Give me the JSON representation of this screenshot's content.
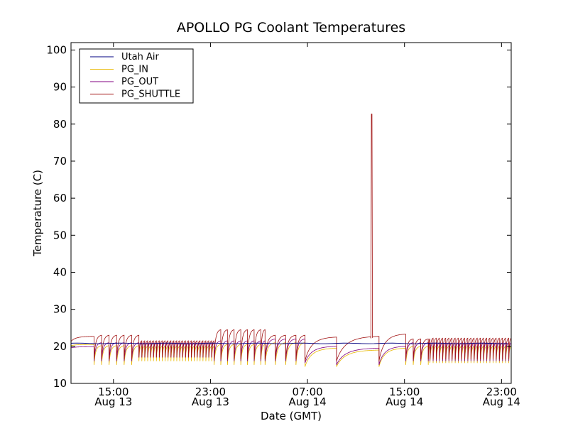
{
  "chart_data": {
    "type": "line",
    "title": "APOLLO PG Coolant Temperatures",
    "xlabel": "Date (GMT)",
    "ylabel": "Temperature (C)",
    "xlim_hours": [
      11.5,
      47.8
    ],
    "ylim": [
      10,
      102
    ],
    "yticks": [
      10,
      20,
      30,
      40,
      50,
      60,
      70,
      80,
      90,
      100
    ],
    "xticks": [
      {
        "h": 15,
        "time": "15:00",
        "date": "Aug 13"
      },
      {
        "h": 23,
        "time": "23:00",
        "date": "Aug 13"
      },
      {
        "h": 31,
        "time": "07:00",
        "date": "Aug 14"
      },
      {
        "h": 39,
        "time": "15:00",
        "date": "Aug 14"
      },
      {
        "h": 47,
        "time": "23:00",
        "date": "Aug 14"
      }
    ],
    "legend": {
      "position": "top-left"
    },
    "series": [
      {
        "name": "Utah Air",
        "color": "#000080"
      },
      {
        "name": "PG_IN",
        "color": "#e8b800"
      },
      {
        "name": "PG_OUT",
        "color": "#800080"
      },
      {
        "name": "PG_SHUTTLE",
        "color": "#a01010"
      }
    ],
    "utah_air_level": 20.8,
    "spike": {
      "h": 36.3,
      "peak": 82.7,
      "base": 22.3
    },
    "segments": [
      {
        "start": 11.5,
        "end": 13.4,
        "period": 1.9,
        "out_min": 19.6,
        "out_max": 19.9,
        "in_min": 20.2,
        "in_max": 20.5,
        "sh_min": 21.3,
        "sh_max": 22.7
      },
      {
        "start": 13.4,
        "end": 17.1,
        "period": 0.62,
        "out_min": 16.0,
        "out_max": 21.0,
        "in_min": 15.0,
        "in_max": 20.2,
        "sh_min": 16.5,
        "sh_max": 23.0
      },
      {
        "start": 17.1,
        "end": 23.3,
        "period": 0.24,
        "out_min": 17.0,
        "out_max": 21.0,
        "in_min": 16.0,
        "in_max": 20.0,
        "sh_min": 17.0,
        "sh_max": 21.5
      },
      {
        "start": 23.3,
        "end": 27.5,
        "period": 0.55,
        "out_min": 16.0,
        "out_max": 21.5,
        "in_min": 15.0,
        "in_max": 20.5,
        "sh_min": 16.5,
        "sh_max": 24.5
      },
      {
        "start": 27.5,
        "end": 30.8,
        "period": 0.85,
        "out_min": 16.0,
        "out_max": 22.0,
        "in_min": 15.0,
        "in_max": 21.0,
        "sh_min": 16.5,
        "sh_max": 23.0
      },
      {
        "start": 30.8,
        "end": 33.4,
        "period": 2.6,
        "out_min": 15.5,
        "out_max": 20.0,
        "in_min": 14.5,
        "in_max": 19.5,
        "sh_min": 16.0,
        "sh_max": 22.5
      },
      {
        "start": 33.4,
        "end": 36.9,
        "period": 3.5,
        "out_min": 15.0,
        "out_max": 19.5,
        "in_min": 14.5,
        "in_max": 19.0,
        "sh_min": 16.0,
        "sh_max": 22.7
      },
      {
        "start": 36.9,
        "end": 39.1,
        "period": 2.2,
        "out_min": 15.0,
        "out_max": 20.0,
        "in_min": 14.5,
        "in_max": 19.5,
        "sh_min": 16.0,
        "sh_max": 23.3
      },
      {
        "start": 39.1,
        "end": 41.1,
        "period": 0.62,
        "out_min": 16.0,
        "out_max": 21.0,
        "in_min": 15.0,
        "in_max": 20.0,
        "sh_min": 16.5,
        "sh_max": 22.0
      },
      {
        "start": 41.1,
        "end": 47.8,
        "period": 0.26,
        "out_min": 16.0,
        "out_max": 21.0,
        "in_min": 15.5,
        "in_max": 20.0,
        "sh_min": 16.5,
        "sh_max": 22.2
      }
    ]
  }
}
